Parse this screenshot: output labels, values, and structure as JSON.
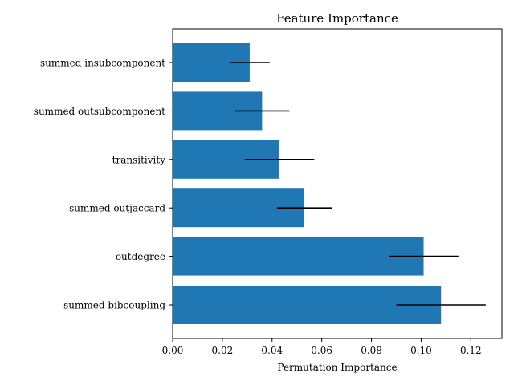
{
  "chart_data": {
    "type": "bar",
    "orientation": "horizontal",
    "title": "Feature Importance",
    "xlabel": "Permutation Importance",
    "ylabel": "",
    "xlim": [
      0.0,
      0.1325
    ],
    "xticks": [
      0.0,
      0.02,
      0.04,
      0.06,
      0.08,
      0.1,
      0.12
    ],
    "xtick_labels": [
      "0.00",
      "0.02",
      "0.04",
      "0.06",
      "0.08",
      "0.10",
      "0.12"
    ],
    "categories": [
      "summed insubcomponent",
      "summed outsubcomponent",
      "transitivity",
      "summed outjaccard",
      "outdegree",
      "summed bibcoupling"
    ],
    "values": [
      0.031,
      0.036,
      0.043,
      0.053,
      0.101,
      0.108
    ],
    "errors": [
      0.008,
      0.011,
      0.014,
      0.011,
      0.014,
      0.018
    ],
    "bar_color": "#1f77b4",
    "error_color": "#000000",
    "grid": false,
    "legend": "none"
  }
}
